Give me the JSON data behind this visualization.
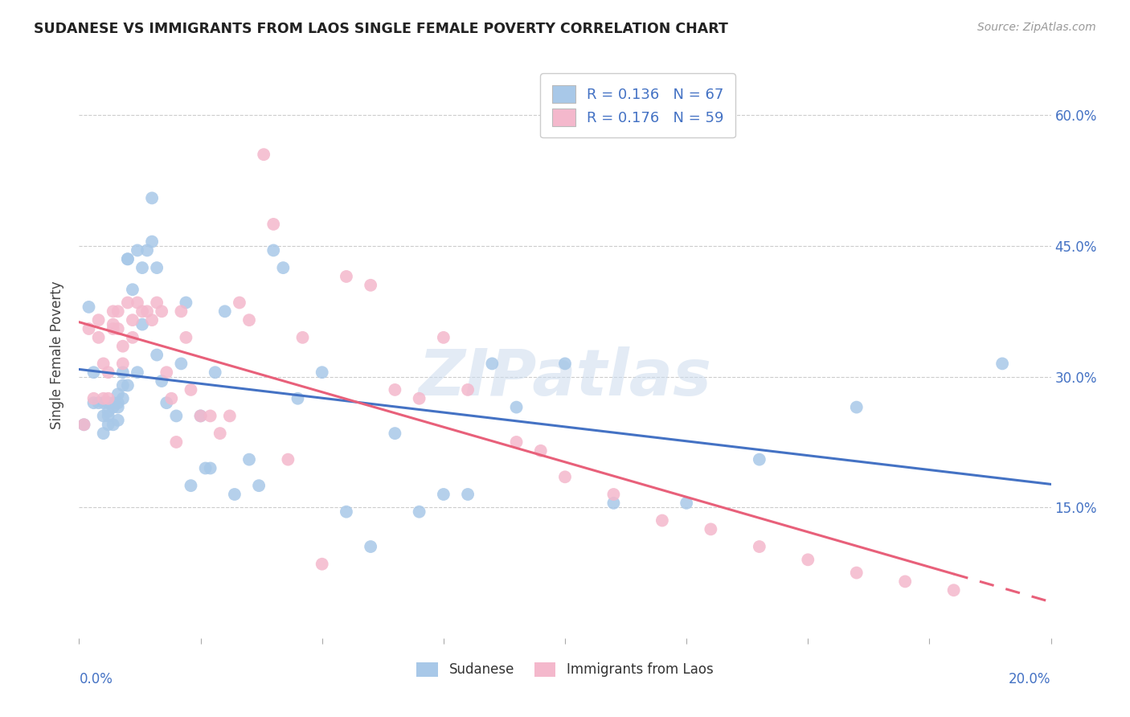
{
  "title": "SUDANESE VS IMMIGRANTS FROM LAOS SINGLE FEMALE POVERTY CORRELATION CHART",
  "source": "Source: ZipAtlas.com",
  "ylabel": "Single Female Poverty",
  "legend_label1": "Sudanese",
  "legend_label2": "Immigrants from Laos",
  "legend_R1": "R = 0.136",
  "legend_N1": "N = 67",
  "legend_R2": "R = 0.176",
  "legend_N2": "N = 59",
  "color_blue": "#a8c8e8",
  "color_pink": "#f4b8cc",
  "line_blue": "#4472c4",
  "line_pink": "#e8607a",
  "watermark": "ZIPatlas",
  "xlim": [
    0,
    0.2
  ],
  "ylim": [
    0.0,
    0.65
  ],
  "y_ticks": [
    0.15,
    0.3,
    0.45,
    0.6
  ],
  "sudanese_x": [
    0.001,
    0.002,
    0.003,
    0.003,
    0.004,
    0.005,
    0.005,
    0.005,
    0.006,
    0.006,
    0.006,
    0.006,
    0.007,
    0.007,
    0.007,
    0.008,
    0.008,
    0.008,
    0.008,
    0.009,
    0.009,
    0.009,
    0.01,
    0.01,
    0.01,
    0.011,
    0.012,
    0.012,
    0.013,
    0.013,
    0.014,
    0.015,
    0.015,
    0.016,
    0.016,
    0.017,
    0.018,
    0.02,
    0.021,
    0.022,
    0.023,
    0.025,
    0.026,
    0.027,
    0.028,
    0.03,
    0.032,
    0.035,
    0.037,
    0.04,
    0.042,
    0.045,
    0.05,
    0.055,
    0.06,
    0.065,
    0.07,
    0.075,
    0.08,
    0.085,
    0.09,
    0.1,
    0.11,
    0.125,
    0.14,
    0.16,
    0.19
  ],
  "sudanese_y": [
    0.245,
    0.38,
    0.305,
    0.27,
    0.27,
    0.27,
    0.255,
    0.235,
    0.245,
    0.27,
    0.26,
    0.255,
    0.245,
    0.265,
    0.27,
    0.265,
    0.25,
    0.28,
    0.27,
    0.305,
    0.29,
    0.275,
    0.435,
    0.435,
    0.29,
    0.4,
    0.445,
    0.305,
    0.425,
    0.36,
    0.445,
    0.505,
    0.455,
    0.425,
    0.325,
    0.295,
    0.27,
    0.255,
    0.315,
    0.385,
    0.175,
    0.255,
    0.195,
    0.195,
    0.305,
    0.375,
    0.165,
    0.205,
    0.175,
    0.445,
    0.425,
    0.275,
    0.305,
    0.145,
    0.105,
    0.235,
    0.145,
    0.165,
    0.165,
    0.315,
    0.265,
    0.315,
    0.155,
    0.155,
    0.205,
    0.265,
    0.315
  ],
  "laos_x": [
    0.001,
    0.002,
    0.003,
    0.004,
    0.004,
    0.005,
    0.005,
    0.006,
    0.006,
    0.007,
    0.007,
    0.007,
    0.008,
    0.008,
    0.009,
    0.009,
    0.01,
    0.011,
    0.011,
    0.012,
    0.013,
    0.014,
    0.015,
    0.016,
    0.017,
    0.018,
    0.019,
    0.02,
    0.021,
    0.022,
    0.023,
    0.025,
    0.027,
    0.029,
    0.031,
    0.033,
    0.035,
    0.038,
    0.04,
    0.043,
    0.046,
    0.05,
    0.055,
    0.06,
    0.065,
    0.07,
    0.075,
    0.08,
    0.09,
    0.095,
    0.1,
    0.11,
    0.12,
    0.13,
    0.14,
    0.15,
    0.16,
    0.17,
    0.18
  ],
  "laos_y": [
    0.245,
    0.355,
    0.275,
    0.365,
    0.345,
    0.315,
    0.275,
    0.305,
    0.275,
    0.375,
    0.36,
    0.355,
    0.375,
    0.355,
    0.335,
    0.315,
    0.385,
    0.365,
    0.345,
    0.385,
    0.375,
    0.375,
    0.365,
    0.385,
    0.375,
    0.305,
    0.275,
    0.225,
    0.375,
    0.345,
    0.285,
    0.255,
    0.255,
    0.235,
    0.255,
    0.385,
    0.365,
    0.555,
    0.475,
    0.205,
    0.345,
    0.085,
    0.415,
    0.405,
    0.285,
    0.275,
    0.345,
    0.285,
    0.225,
    0.215,
    0.185,
    0.165,
    0.135,
    0.125,
    0.105,
    0.09,
    0.075,
    0.065,
    0.055
  ]
}
